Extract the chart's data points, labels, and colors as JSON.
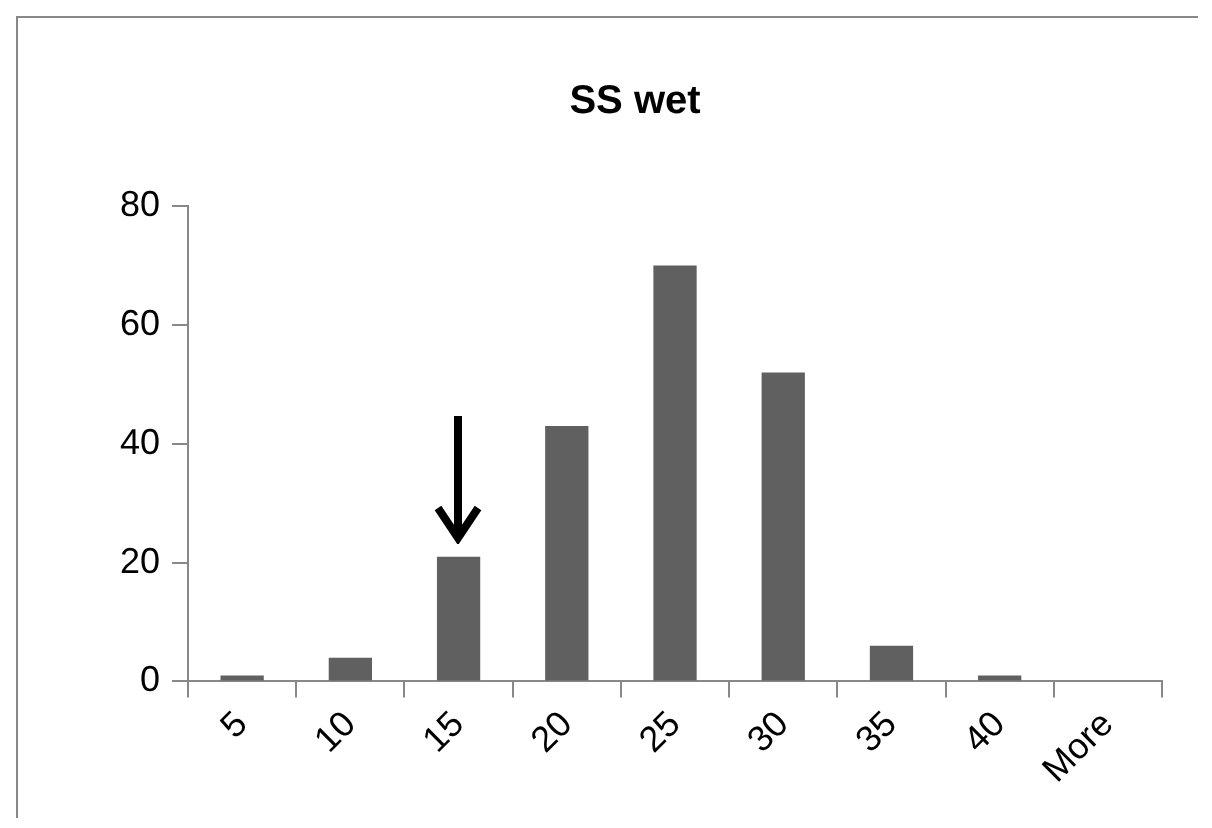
{
  "chart_data": {
    "type": "bar",
    "title": "SS wet",
    "categories": [
      "5",
      "10",
      "15",
      "20",
      "25",
      "30",
      "35",
      "40",
      "More"
    ],
    "values": [
      1,
      4,
      21,
      43,
      70,
      52,
      6,
      1,
      0
    ],
    "color": "#606060",
    "ylim": [
      0,
      80
    ],
    "yticks": [
      0,
      20,
      40,
      60,
      80
    ],
    "grid": false,
    "legend": false
  }
}
